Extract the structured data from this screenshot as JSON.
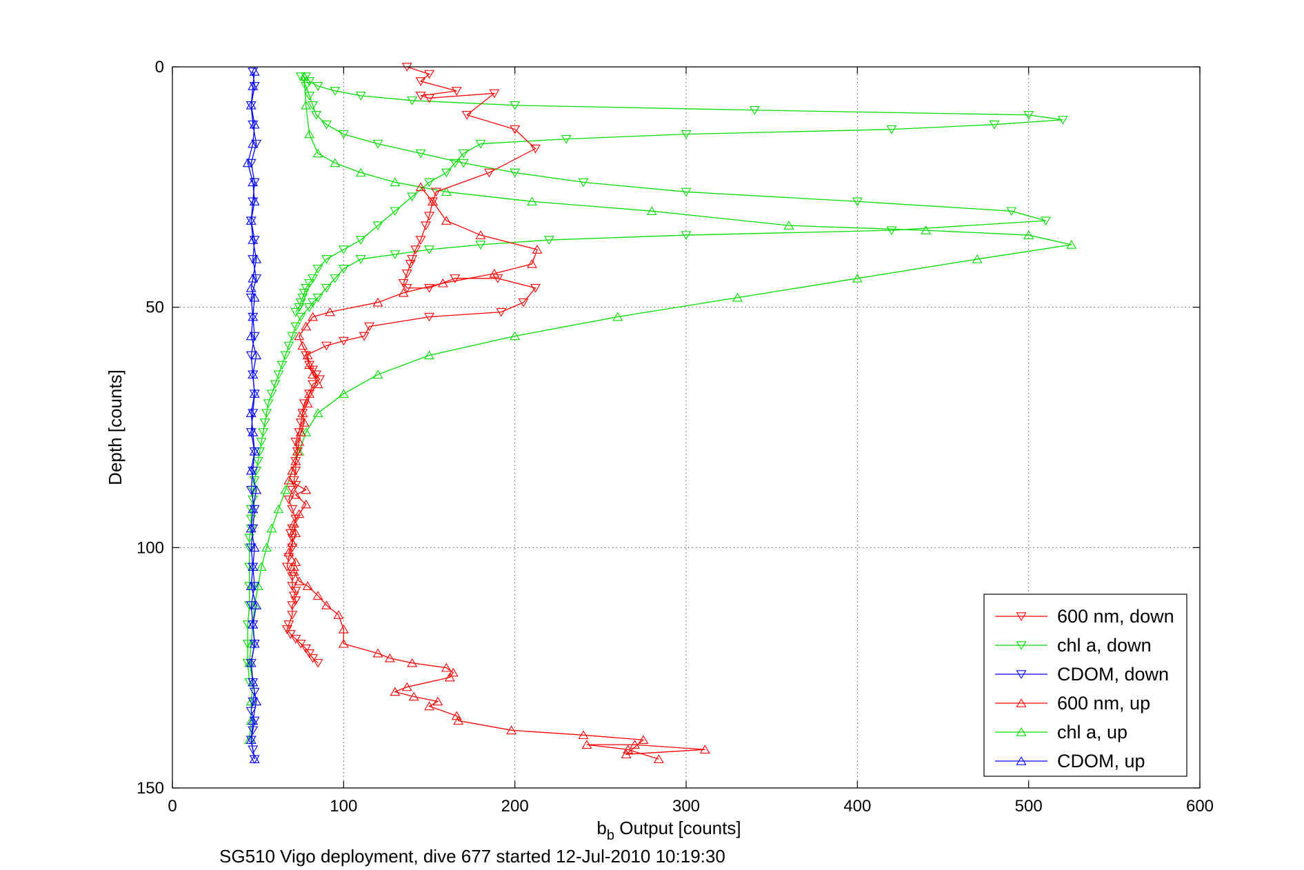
{
  "chart_data": {
    "type": "line",
    "title": "",
    "xlabel_main": "b",
    "xlabel_sub": "b",
    "xlabel_rest": " Output [counts]",
    "ylabel": "Depth [counts]",
    "caption": "SG510 Vigo deployment, dive 677 started 12-Jul-2010 10:19:30",
    "xlim": [
      0,
      600
    ],
    "ylim": [
      0,
      150
    ],
    "y_reversed": true,
    "grid": true,
    "xticks": [
      "0",
      "100",
      "200",
      "300",
      "400",
      "500",
      "600"
    ],
    "yticks": [
      "0",
      "50",
      "100",
      "150"
    ],
    "xtick_values": [
      0,
      100,
      200,
      300,
      400,
      500,
      600
    ],
    "ytick_values": [
      0,
      50,
      100,
      150
    ],
    "legend_position": "bottom-right",
    "series": [
      {
        "name": "600 nm, down",
        "color": "#ff0000",
        "marker": "triangle-down",
        "x": [
          137,
          150,
          145,
          166,
          145,
          150,
          188,
          172,
          200,
          212,
          185,
          154,
          152,
          150,
          148,
          145,
          142,
          140,
          139,
          137,
          135,
          137,
          150,
          165,
          190,
          212,
          205,
          192,
          150,
          115,
          112,
          100,
          90,
          78,
          80,
          82,
          84,
          86,
          82,
          80,
          77,
          76,
          75,
          74,
          72,
          73,
          72,
          72,
          71,
          72,
          70,
          68,
          70,
          72,
          70,
          69,
          70,
          70,
          68,
          67,
          70,
          70,
          72,
          71,
          72,
          70,
          70,
          68,
          67,
          69,
          72,
          75,
          78,
          80,
          82,
          85
        ],
        "y": [
          0,
          1.5,
          3,
          5,
          6,
          6.5,
          5.5,
          10,
          13,
          17,
          22,
          26,
          28,
          31,
          33,
          36,
          38,
          40,
          41,
          43,
          45,
          46,
          46,
          44,
          44,
          46,
          49,
          51,
          52,
          54,
          56,
          57,
          58,
          60,
          62,
          63,
          64,
          65,
          66,
          68,
          70,
          72,
          74,
          76,
          78,
          80,
          82,
          84,
          86,
          87,
          88,
          90,
          92,
          94,
          96,
          97,
          98,
          100,
          102,
          104,
          106,
          108,
          109,
          110,
          111,
          112,
          114,
          116,
          117,
          118,
          119,
          120,
          121,
          122,
          123,
          124
        ]
      },
      {
        "name": "600 nm, up",
        "color": "#ff0000",
        "marker": "triangle-up",
        "x": [
          284,
          266,
          242,
          270,
          311,
          265,
          275,
          240,
          198,
          167,
          166,
          150,
          155,
          141,
          130,
          137,
          162,
          164,
          160,
          140,
          127,
          120,
          100,
          100,
          97,
          90,
          85,
          79,
          74,
          71,
          71,
          72,
          68,
          70,
          72,
          71,
          74,
          78,
          72,
          78,
          68,
          70,
          72,
          73,
          74,
          75,
          77,
          76,
          79,
          80,
          85,
          82,
          80,
          79,
          76,
          74,
          78,
          82,
          92,
          120,
          135,
          158,
          188,
          210,
          213,
          180,
          160,
          152,
          145
        ],
        "y": [
          144,
          142,
          141,
          141,
          142,
          143,
          140,
          139,
          138,
          136,
          135,
          133,
          132,
          131,
          130,
          129,
          127,
          126,
          125,
          124,
          123,
          122,
          120,
          117,
          114,
          112,
          110,
          108,
          107,
          105,
          104,
          103,
          101,
          99,
          97,
          95,
          93,
          91,
          89,
          88,
          86,
          84,
          82,
          80,
          78,
          76,
          74,
          72,
          70,
          68,
          66,
          64,
          62,
          60,
          58,
          56,
          54,
          52,
          51,
          49,
          47,
          45,
          43,
          41,
          38,
          35,
          32,
          28,
          25
        ]
      },
      {
        "name": "chl a, down",
        "color": "#00dd00",
        "marker": "triangle-down",
        "x": [
          78,
          80,
          85,
          95,
          110,
          140,
          200,
          340,
          500,
          520,
          480,
          420,
          300,
          230,
          180,
          170,
          165,
          160,
          150,
          140,
          130,
          120,
          110,
          100,
          90,
          85,
          82,
          80,
          78,
          77,
          76,
          75,
          74,
          72
        ],
        "y": [
          2,
          3,
          4,
          5,
          6,
          7,
          8,
          9,
          10,
          11,
          12,
          13,
          14,
          15,
          16,
          18,
          20,
          22,
          24,
          27,
          30,
          33,
          36,
          38,
          40,
          42,
          44,
          45,
          46,
          47,
          48,
          49,
          50,
          51
        ],
        "x2": [
          75,
          78,
          80,
          82,
          84,
          90,
          100,
          120,
          145,
          170,
          200,
          240,
          300,
          400,
          490,
          510,
          420,
          300,
          220,
          180,
          150,
          130,
          110,
          100,
          95,
          90,
          85,
          82,
          80,
          75,
          72,
          70,
          68,
          66,
          64,
          62,
          60,
          58,
          56,
          55,
          54,
          53,
          52,
          51,
          50,
          49,
          48,
          47,
          47,
          46,
          46,
          46,
          45,
          45,
          45,
          45,
          45,
          44,
          44,
          44,
          45
        ],
        "y2": [
          2,
          4,
          6,
          8,
          10,
          12,
          14,
          16,
          18,
          20,
          22,
          24,
          26,
          28,
          30,
          32,
          34,
          35,
          36,
          37,
          38,
          39,
          40,
          42,
          44,
          46,
          48,
          49,
          50,
          52,
          54,
          56,
          58,
          60,
          62,
          64,
          66,
          68,
          70,
          72,
          74,
          76,
          78,
          80,
          82,
          84,
          86,
          88,
          90,
          92,
          94,
          96,
          98,
          100,
          104,
          108,
          112,
          116,
          120,
          124,
          128
        ]
      },
      {
        "name": "chl a, up",
        "color": "#00dd00",
        "marker": "triangle-up",
        "x": [
          45,
          46,
          46,
          47,
          45,
          46,
          47,
          48,
          50,
          52,
          55,
          58,
          62,
          66,
          70,
          74,
          78,
          85,
          100,
          120,
          150,
          200,
          260,
          330,
          400,
          470,
          525,
          500,
          440,
          360,
          280,
          210,
          160,
          130,
          110,
          95,
          85,
          80,
          78,
          77
        ],
        "y": [
          140,
          136,
          132,
          128,
          124,
          120,
          116,
          112,
          108,
          104,
          100,
          96,
          92,
          88,
          84,
          80,
          76,
          72,
          68,
          64,
          60,
          56,
          52,
          48,
          44,
          40,
          37,
          35,
          34,
          33,
          30,
          28,
          26,
          24,
          22,
          20,
          18,
          14,
          8,
          2
        ]
      },
      {
        "name": "CDOM, down",
        "color": "#0000ff",
        "marker": "triangle-down",
        "x": [
          47,
          48,
          46,
          47,
          49,
          46,
          48,
          47,
          46,
          48,
          47,
          49,
          46,
          47,
          48,
          46,
          47,
          48,
          47,
          46,
          48,
          47,
          46,
          48,
          47,
          46,
          47,
          48,
          46,
          47,
          48,
          46,
          47,
          48,
          47,
          46,
          48,
          47,
          46,
          47,
          48
        ],
        "y": [
          1,
          4,
          8,
          12,
          16,
          20,
          24,
          28,
          32,
          36,
          40,
          44,
          48,
          52,
          56,
          60,
          64,
          68,
          72,
          76,
          80,
          84,
          88,
          92,
          96,
          100,
          104,
          108,
          112,
          116,
          120,
          124,
          128,
          130,
          132,
          134,
          136,
          138,
          140,
          142,
          144
        ]
      },
      {
        "name": "CDOM, up",
        "color": "#0000ff",
        "marker": "triangle-up",
        "x": [
          48,
          46,
          47,
          49,
          47,
          46,
          48,
          47,
          49,
          46,
          47,
          48,
          46,
          47,
          49,
          46,
          48,
          47,
          46,
          48,
          47,
          49,
          46,
          47,
          48,
          46,
          47,
          49,
          47,
          46,
          48,
          47,
          44,
          47,
          48,
          46,
          47,
          48
        ],
        "y": [
          144,
          140,
          136,
          132,
          128,
          124,
          120,
          116,
          112,
          108,
          104,
          100,
          96,
          92,
          88,
          84,
          80,
          76,
          72,
          68,
          64,
          60,
          56,
          52,
          48,
          46,
          44,
          40,
          36,
          32,
          28,
          24,
          20,
          16,
          12,
          8,
          4,
          1
        ]
      }
    ]
  }
}
